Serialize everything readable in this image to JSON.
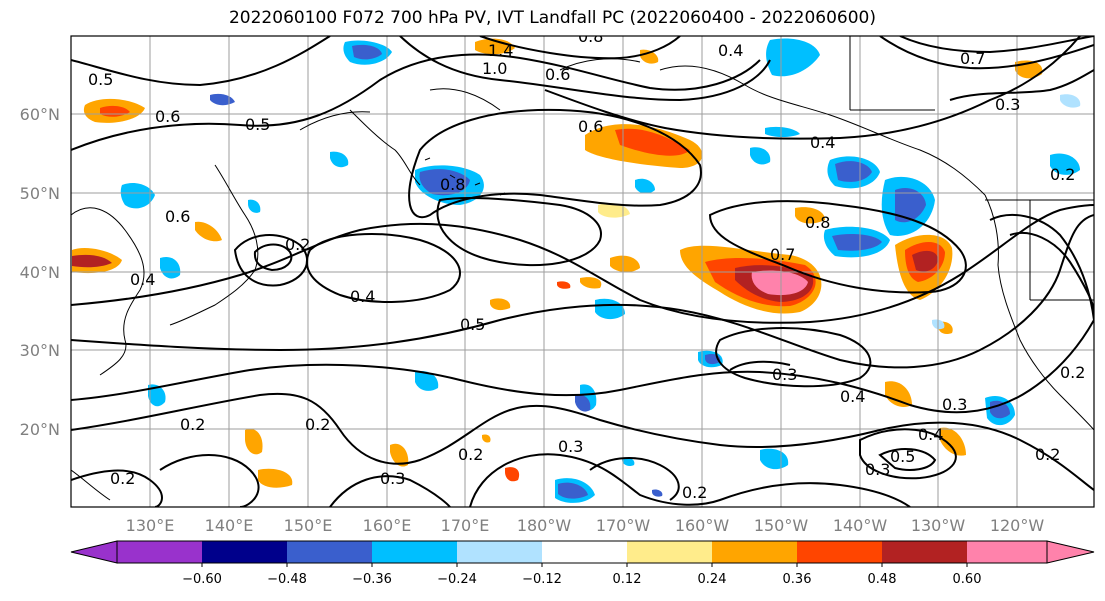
{
  "title": "2022060100 F072 700 hPa PV, IVT Landfall PC (2022060400 - 2022060600)",
  "lat_labels": [
    "60°N",
    "50°N",
    "40°N",
    "30°N",
    "20°N"
  ],
  "lon_labels": [
    "130°E",
    "140°E",
    "150°E",
    "160°E",
    "170°E",
    "180°W",
    "170°W",
    "160°W",
    "150°W",
    "140°W",
    "130°W",
    "120°W"
  ],
  "colorbar": {
    "ticks": [
      "−0.60",
      "−0.48",
      "−0.36",
      "−0.24",
      "−0.12",
      "0.12",
      "0.24",
      "0.36",
      "0.48",
      "0.60"
    ],
    "colors": [
      "#9932cc",
      "#00008b",
      "#3a5fcd",
      "#00bfff",
      "#b0e2ff",
      "#ffffff",
      "#ffec8b",
      "#ffa500",
      "#ff4500",
      "#b22222",
      "#ff82ab"
    ]
  },
  "contour_labels": [
    "1.4",
    "1.0",
    "0.8",
    "0.6",
    "0.4",
    "0.7",
    "0.3",
    "0.2",
    "0.5",
    "0.6",
    "0.5",
    "0.6",
    "0.8",
    "0.4",
    "0.6",
    "0.8",
    "0.7",
    "0.4",
    "0.5",
    "0.4",
    "0.3",
    "0.2",
    "0.2",
    "0.3",
    "0.2",
    "0.3",
    "0.2",
    "0.4",
    "0.3",
    "0.5",
    "0.4",
    "0.3",
    "0.2",
    "0.2",
    "0.2",
    "0.2"
  ]
}
